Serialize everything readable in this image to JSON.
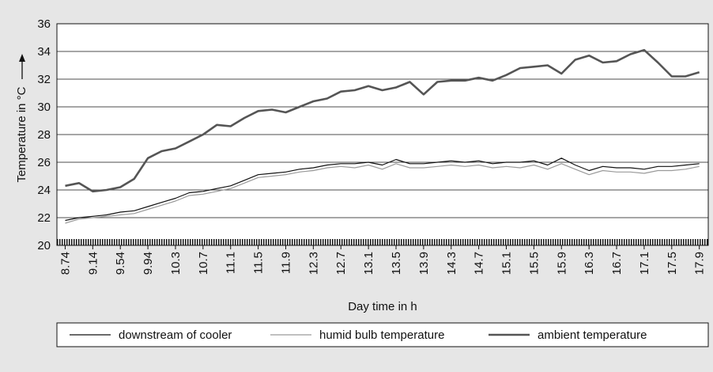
{
  "chart_data": {
    "type": "line",
    "y_label": "Temperature in °C",
    "x_label": "Day time in h",
    "xlim": [
      8.62,
      18.07
    ],
    "ylim": [
      20,
      36
    ],
    "yticks": [
      20,
      22,
      24,
      26,
      28,
      30,
      32,
      34,
      36
    ],
    "xticks": [
      8.74,
      9.14,
      9.54,
      9.94,
      {
        "value": 10.34,
        "label": "10.3"
      },
      {
        "value": 10.74,
        "label": "10.7"
      },
      {
        "value": 11.14,
        "label": "11.1"
      },
      {
        "value": 11.54,
        "label": "11.5"
      },
      {
        "value": 11.94,
        "label": "11.9"
      },
      {
        "value": 12.34,
        "label": "12.3"
      },
      {
        "value": 12.74,
        "label": "12.7"
      },
      {
        "value": 13.14,
        "label": "13.1"
      },
      {
        "value": 13.54,
        "label": "13.5"
      },
      {
        "value": 13.94,
        "label": "13.9"
      },
      {
        "value": 14.34,
        "label": "14.3"
      },
      {
        "value": 14.74,
        "label": "14.7"
      },
      {
        "value": 15.14,
        "label": "15.1"
      },
      {
        "value": 15.54,
        "label": "15.5"
      },
      {
        "value": 15.94,
        "label": "15.9"
      },
      {
        "value": 16.34,
        "label": "16.3"
      },
      {
        "value": 16.74,
        "label": "16.7"
      },
      {
        "value": 17.14,
        "label": "17.1"
      },
      {
        "value": 17.54,
        "label": "17.5"
      },
      {
        "value": 17.94,
        "label": "17.9"
      }
    ],
    "grid": true,
    "legend": "bottom",
    "x": [
      8.74,
      8.94,
      9.14,
      9.34,
      9.54,
      9.74,
      9.94,
      10.14,
      10.34,
      10.54,
      10.74,
      10.94,
      11.14,
      11.34,
      11.54,
      11.74,
      11.94,
      12.14,
      12.34,
      12.54,
      12.74,
      12.94,
      13.14,
      13.34,
      13.54,
      13.74,
      13.94,
      14.14,
      14.34,
      14.54,
      14.74,
      14.94,
      15.14,
      15.34,
      15.54,
      15.74,
      15.94,
      16.14,
      16.34,
      16.54,
      16.74,
      16.94,
      17.14,
      17.34,
      17.54,
      17.74,
      17.94
    ],
    "series": [
      {
        "name": "downstream of cooler",
        "color": "#111111",
        "width": 1.2,
        "values": [
          21.8,
          22.0,
          22.1,
          22.2,
          22.4,
          22.5,
          22.8,
          23.1,
          23.4,
          23.8,
          23.9,
          24.1,
          24.3,
          24.7,
          25.1,
          25.2,
          25.3,
          25.5,
          25.6,
          25.8,
          25.9,
          25.9,
          26.0,
          25.8,
          26.2,
          25.9,
          25.9,
          26.0,
          26.1,
          26.0,
          26.1,
          25.9,
          26.0,
          26.0,
          26.1,
          25.8,
          26.3,
          25.8,
          25.4,
          25.7,
          25.6,
          25.6,
          25.5,
          25.7,
          25.7,
          25.8,
          25.9
        ]
      },
      {
        "name": "humid bulb temperature",
        "color": "#9a9a9a",
        "width": 1.2,
        "values": [
          21.6,
          21.9,
          22.0,
          22.1,
          22.2,
          22.3,
          22.6,
          22.9,
          23.2,
          23.6,
          23.7,
          23.9,
          24.1,
          24.5,
          24.9,
          25.0,
          25.1,
          25.3,
          25.4,
          25.6,
          25.7,
          25.6,
          25.8,
          25.5,
          25.9,
          25.6,
          25.6,
          25.7,
          25.8,
          25.7,
          25.8,
          25.6,
          25.7,
          25.6,
          25.8,
          25.5,
          25.9,
          25.5,
          25.1,
          25.4,
          25.3,
          25.3,
          25.2,
          25.4,
          25.4,
          25.5,
          25.7
        ]
      },
      {
        "name": "ambient temperature",
        "color": "#555555",
        "width": 2.6,
        "values": [
          24.3,
          24.5,
          23.9,
          24.0,
          24.2,
          24.8,
          26.3,
          26.8,
          27.0,
          27.5,
          28.0,
          28.7,
          28.6,
          29.2,
          29.7,
          29.8,
          29.6,
          30.0,
          30.4,
          30.6,
          31.1,
          31.2,
          31.5,
          31.2,
          31.4,
          31.8,
          30.9,
          31.8,
          31.9,
          31.9,
          32.1,
          31.9,
          32.3,
          32.8,
          32.9,
          33.0,
          32.4,
          33.4,
          33.7,
          33.2,
          33.3,
          33.8,
          34.1,
          33.2,
          32.2,
          32.2,
          32.5
        ]
      }
    ]
  }
}
